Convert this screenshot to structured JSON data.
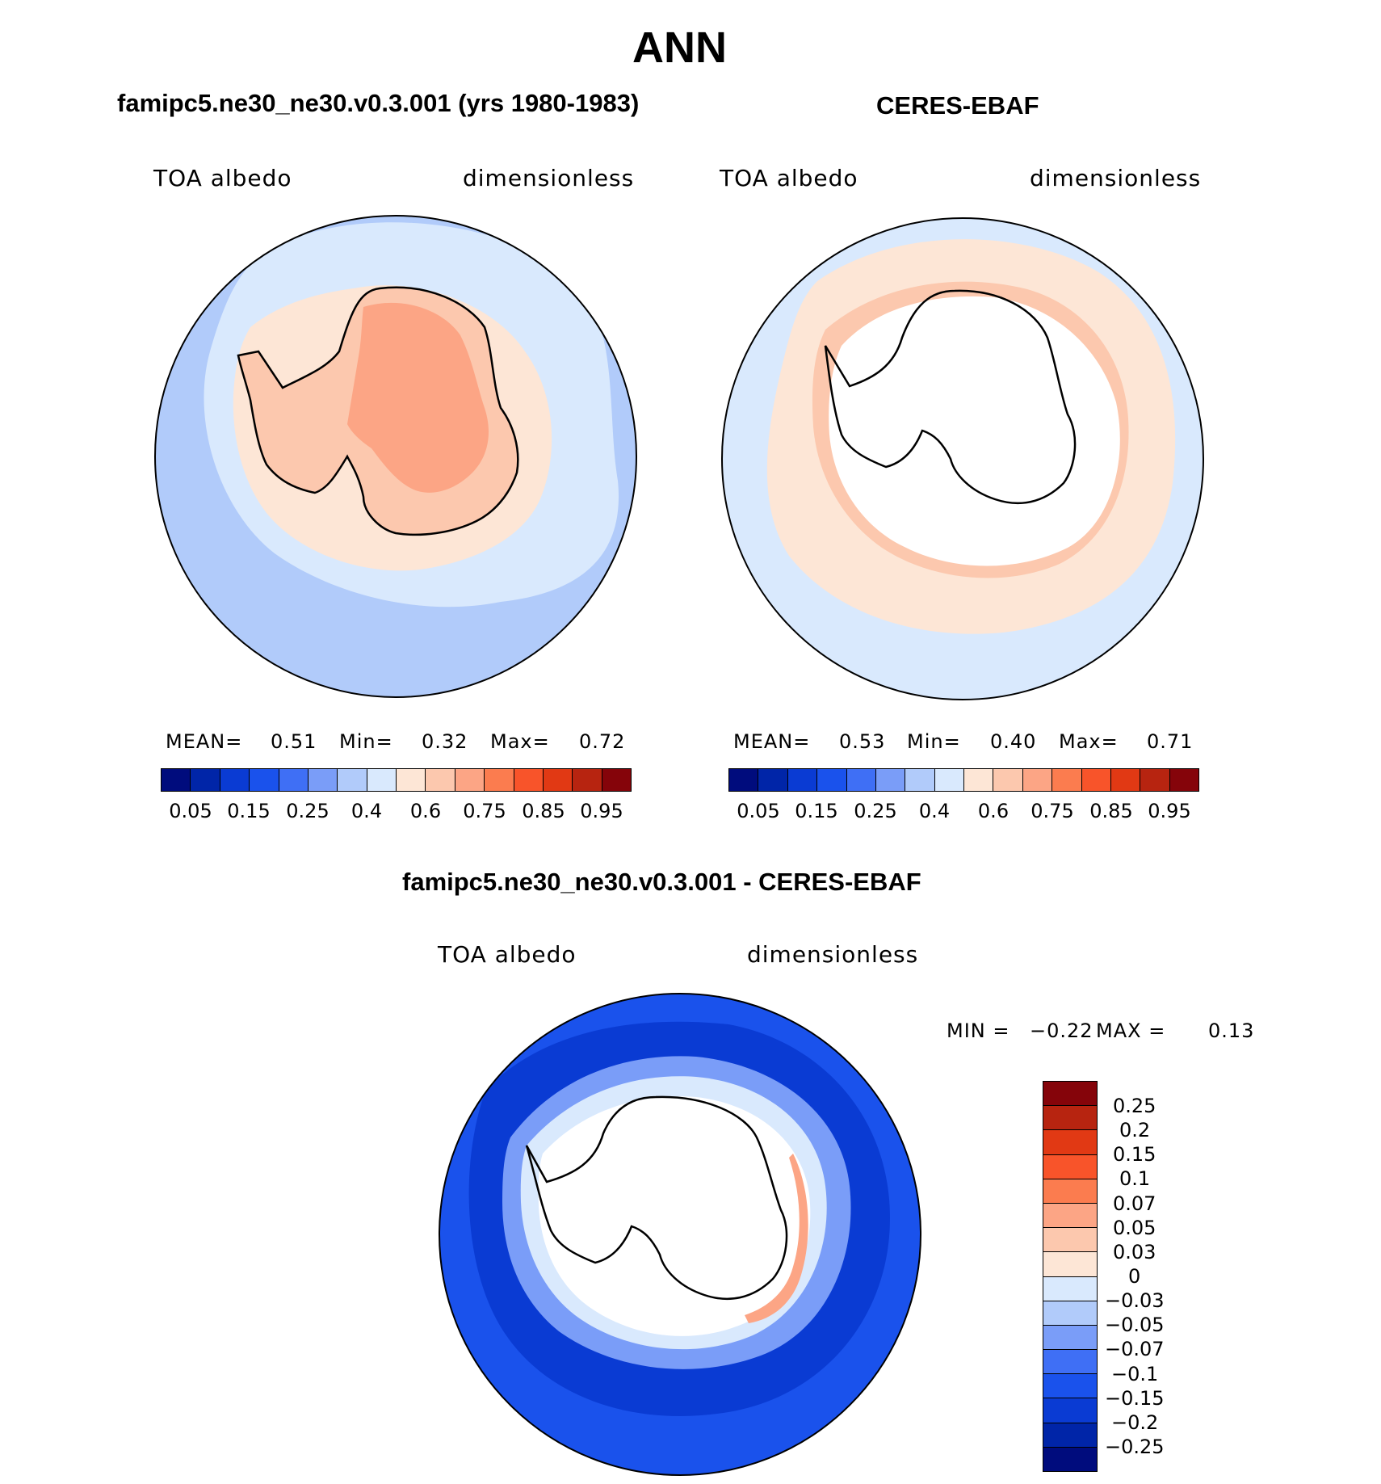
{
  "figure_title": "ANN",
  "panels": {
    "model": {
      "title": "famipc5.ne30_ne30.v0.3.001 (yrs 1980-1983)",
      "variable": "TOA albedo",
      "units": "dimensionless",
      "stats": {
        "mean_label": "MEAN=",
        "mean": "0.51",
        "min_label": "Min=",
        "min": "0.32",
        "max_label": "Max=",
        "max": "0.72"
      }
    },
    "obs": {
      "title": "CERES-EBAF",
      "variable": "TOA albedo",
      "units": "dimensionless",
      "stats": {
        "mean_label": "MEAN=",
        "mean": "0.53",
        "min_label": "Min=",
        "min": "0.40",
        "max_label": "Max=",
        "max": "0.71"
      }
    },
    "diff": {
      "title": "famipc5.ne30_ne30.v0.3.001 - CERES-EBAF",
      "variable": "TOA albedo",
      "units": "dimensionless",
      "stats": {
        "min_label": "MIN =",
        "min": "−0.22",
        "max_label": "MAX =",
        "max": "0.13"
      }
    }
  },
  "colorbars": {
    "absolute": {
      "colors": [
        "#000c7d",
        "#0025a8",
        "#0a3bd3",
        "#1a52ec",
        "#3f6ff5",
        "#7a9df8",
        "#b1cbfa",
        "#d9e9fd",
        "#fde6d6",
        "#fcc8ae",
        "#fca585",
        "#fb7c4f",
        "#f8542a",
        "#e13914",
        "#b72410",
        "#85040a"
      ],
      "tick_labels": [
        "0.05",
        "0.15",
        "0.25",
        "0.4",
        "0.6",
        "0.75",
        "0.85",
        "0.95"
      ]
    },
    "difference": {
      "colors": [
        "#85040a",
        "#b72410",
        "#e13914",
        "#f8542a",
        "#fb7c4f",
        "#fca585",
        "#fcc8ae",
        "#fde6d6",
        "#d9e9fd",
        "#b1cbfa",
        "#7a9df8",
        "#3f6ff5",
        "#1a52ec",
        "#0a3bd3",
        "#0025a8",
        "#000c7d"
      ],
      "tick_labels": [
        "0.25",
        "0.2",
        "0.15",
        "0.1",
        "0.07",
        "0.05",
        "0.03",
        "0",
        "−0.03",
        "−0.05",
        "−0.07",
        "−0.1",
        "−0.15",
        "−0.2",
        "−0.25"
      ]
    }
  },
  "map_colors": {
    "model": {
      "ocean_outer": "#b1cbfa",
      "ocean_mid": "#d9e9fd",
      "sea_ice": "#fde6d6",
      "land": "#fcc8ae",
      "land_high": "#fca585"
    },
    "obs": {
      "ocean_outer": "#d9e9fd",
      "ring": "#fde6d6",
      "ring_inner": "#fcc8ae",
      "no_data": "#ffffff"
    },
    "diff": {
      "outer": "#1a52ec",
      "mid": "#0a3bd3",
      "light": "#7a9df8",
      "pale": "#d9e9fd",
      "no_data": "#ffffff",
      "positive": "#fca585"
    }
  }
}
